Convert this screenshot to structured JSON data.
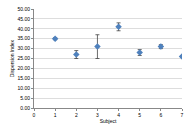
{
  "chart_data": {
    "type": "scatter",
    "x_label": "Subject",
    "y_label": "Dispersion Index",
    "x": [
      1,
      2,
      3,
      4,
      5,
      6,
      7
    ],
    "values": [
      35,
      27,
      31,
      41,
      28,
      31,
      26
    ],
    "errors": [
      0.5,
      2,
      6,
      2,
      1.5,
      1,
      0.5
    ],
    "color": "#4f81bd",
    "marker": "diamond",
    "xlim": [
      0,
      7
    ],
    "xticks": [
      0,
      1,
      2,
      3,
      4,
      5,
      6,
      7
    ],
    "ylim": [
      0,
      50
    ],
    "yticks": [
      {
        "value": 0,
        "label": "0.00"
      },
      {
        "value": 5,
        "label": "5.00"
      },
      {
        "value": 10,
        "label": "10.00"
      },
      {
        "value": 15,
        "label": "15.00"
      },
      {
        "value": 20,
        "label": "20.00"
      },
      {
        "value": 25,
        "label": "25.00"
      },
      {
        "value": 30,
        "label": "30.00"
      },
      {
        "value": 35,
        "label": "35.00"
      },
      {
        "value": 40,
        "label": "40.00"
      },
      {
        "value": 45,
        "label": "45.00"
      },
      {
        "value": 50,
        "label": "50.00"
      }
    ],
    "grid": true
  }
}
